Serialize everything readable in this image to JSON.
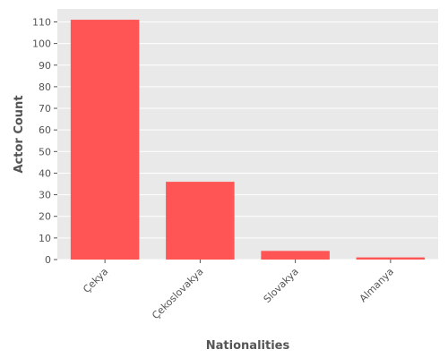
{
  "chart_data": {
    "type": "bar",
    "categories": [
      "Çekya",
      "Çekoslovakya",
      "Slovakya",
      "Almanya"
    ],
    "values": [
      111,
      36,
      4,
      1
    ],
    "title": "",
    "xlabel": "Nationalities",
    "ylabel": "Actor Count",
    "ylim": [
      0,
      116
    ],
    "yticks": [
      0,
      10,
      20,
      30,
      40,
      50,
      60,
      70,
      80,
      90,
      100,
      110
    ],
    "grid": true,
    "colors": {
      "bar": "#ff5555",
      "plot_background": "#e9e9e9",
      "grid": "#ffffff",
      "text": "#555555"
    }
  }
}
